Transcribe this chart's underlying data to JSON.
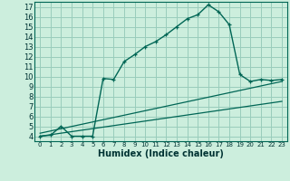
{
  "xlabel": "Humidex (Indice chaleur)",
  "bg_color": "#cceedd",
  "grid_color": "#99ccbb",
  "line_color": "#006655",
  "xlim": [
    -0.5,
    23.5
  ],
  "ylim": [
    3.5,
    17.5
  ],
  "xticks": [
    0,
    1,
    2,
    3,
    4,
    5,
    6,
    7,
    8,
    9,
    10,
    11,
    12,
    13,
    14,
    15,
    16,
    17,
    18,
    19,
    20,
    21,
    22,
    23
  ],
  "yticks": [
    4,
    5,
    6,
    7,
    8,
    9,
    10,
    11,
    12,
    13,
    14,
    15,
    16,
    17
  ],
  "main_curve_x": [
    0,
    1,
    2,
    3,
    4,
    5,
    6,
    7,
    8,
    9,
    10,
    11,
    12,
    13,
    14,
    15,
    16,
    17,
    18,
    19,
    20,
    21,
    22,
    23
  ],
  "main_curve_y": [
    4.0,
    4.1,
    5.0,
    4.0,
    4.0,
    4.0,
    9.8,
    9.7,
    11.5,
    12.2,
    13.0,
    13.5,
    14.2,
    15.0,
    15.8,
    16.2,
    17.2,
    16.5,
    15.2,
    10.2,
    9.5,
    9.7,
    9.6,
    9.7
  ],
  "line1_x": [
    0,
    23
  ],
  "line1_y": [
    4.0,
    7.5
  ],
  "line2_x": [
    0,
    23
  ],
  "line2_y": [
    4.3,
    9.5
  ],
  "xlabel_fontsize": 7,
  "tick_fontsize_x": 5,
  "tick_fontsize_y": 6
}
